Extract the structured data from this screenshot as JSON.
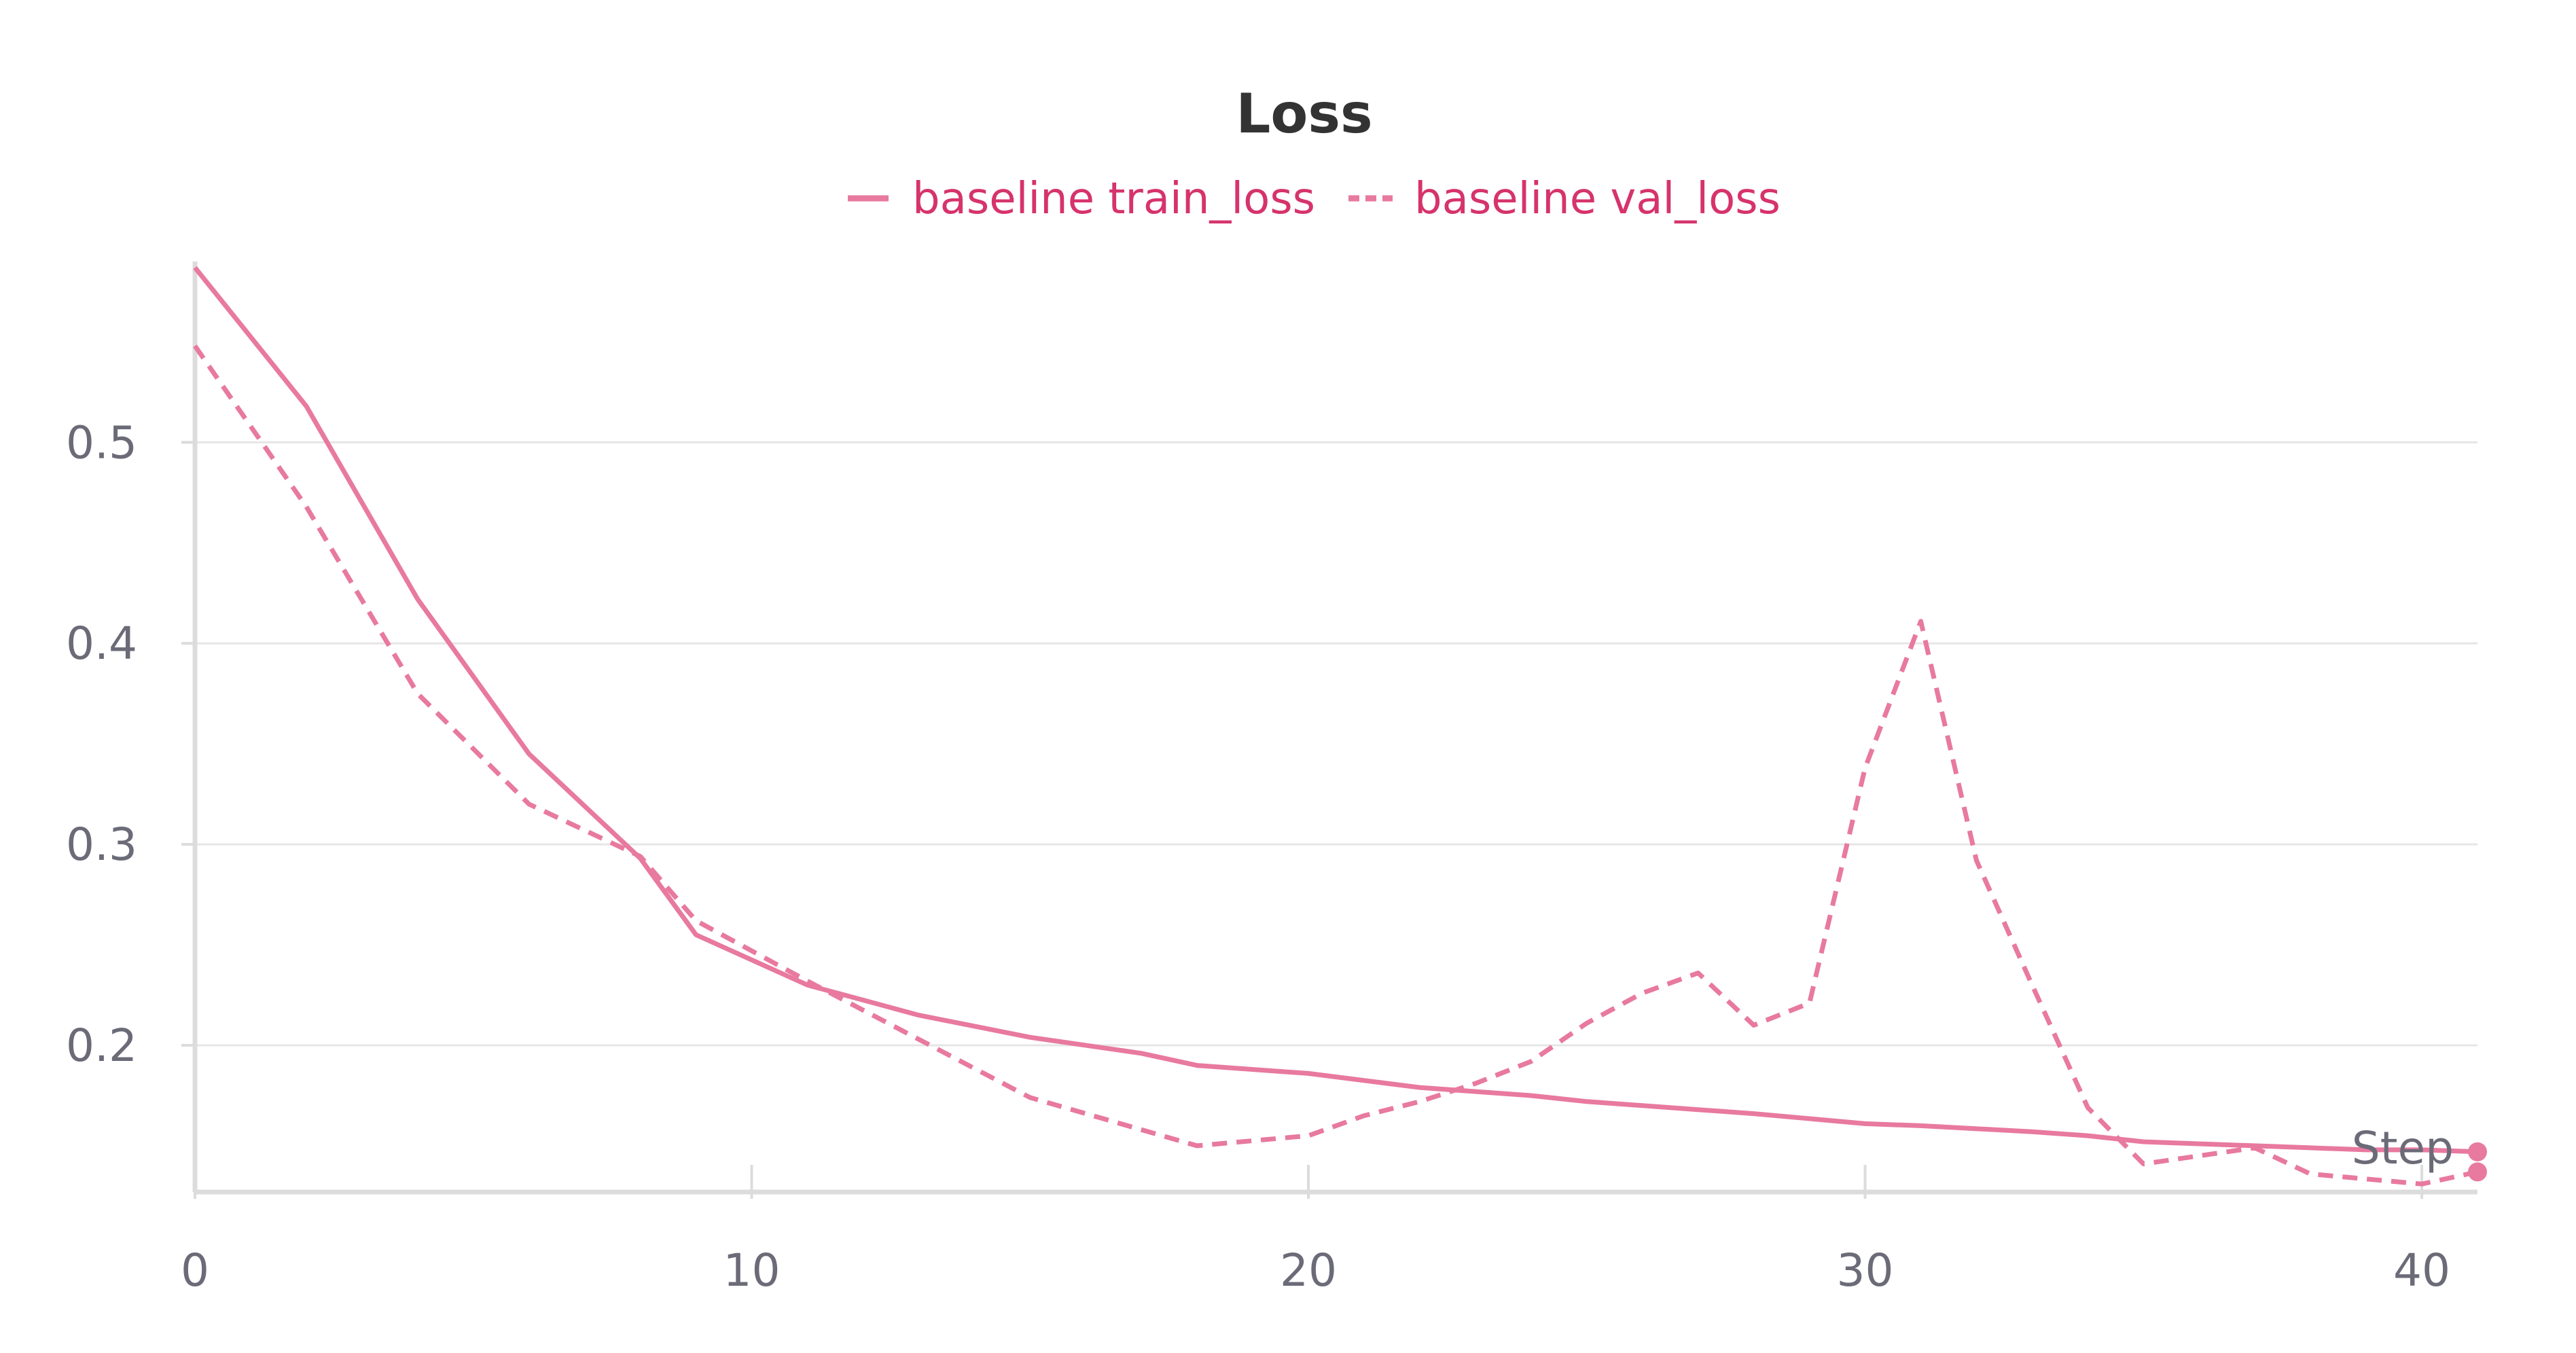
{
  "chart_data": {
    "type": "line",
    "title": "Loss",
    "xlabel": "Step",
    "ylabel": "",
    "xlim": [
      0,
      41
    ],
    "ylim": [
      0.127,
      0.59
    ],
    "xticks": [
      0,
      10,
      20,
      30,
      40
    ],
    "yticks": [
      0.2,
      0.3,
      0.4,
      0.5
    ],
    "xtick_labels": [
      "0",
      "10",
      "20",
      "30",
      "40"
    ],
    "ytick_labels": [
      "0.2",
      "0.3",
      "0.4",
      "0.5"
    ],
    "grid": "horizontal",
    "legend_position": "top-center",
    "colors": {
      "series": "#e8799f",
      "legend_text": "#d6336c",
      "grid": "#e6e6e6",
      "axis": "#dcdcdc"
    },
    "series": [
      {
        "name": "baseline train_loss",
        "style": "solid",
        "x": [
          0,
          2,
          4,
          6,
          8,
          9,
          11,
          13,
          15,
          17,
          18,
          20,
          22,
          24,
          25,
          27,
          28,
          30,
          31,
          33,
          34,
          35,
          37,
          38,
          39,
          40,
          41
        ],
        "y": [
          0.587,
          0.518,
          0.422,
          0.345,
          0.293,
          0.255,
          0.23,
          0.215,
          0.204,
          0.196,
          0.19,
          0.186,
          0.179,
          0.175,
          0.172,
          0.168,
          0.166,
          0.161,
          0.16,
          0.157,
          0.155,
          0.152,
          0.15,
          0.149,
          0.148,
          0.148,
          0.147
        ]
      },
      {
        "name": "baseline val_loss",
        "style": "dashed",
        "x": [
          0,
          2,
          4,
          6,
          8,
          9,
          11,
          13,
          15,
          18,
          20,
          21,
          22,
          23,
          24,
          25,
          26,
          27,
          28,
          29,
          30,
          31,
          32,
          33,
          34,
          35,
          36,
          37,
          38,
          40,
          41
        ],
        "y": [
          0.548,
          0.468,
          0.375,
          0.32,
          0.294,
          0.262,
          0.232,
          0.203,
          0.174,
          0.15,
          0.155,
          0.165,
          0.172,
          0.181,
          0.192,
          0.211,
          0.226,
          0.236,
          0.21,
          0.221,
          0.338,
          0.411,
          0.292,
          0.23,
          0.169,
          0.141,
          0.145,
          0.149,
          0.136,
          0.131,
          0.137
        ]
      }
    ]
  }
}
